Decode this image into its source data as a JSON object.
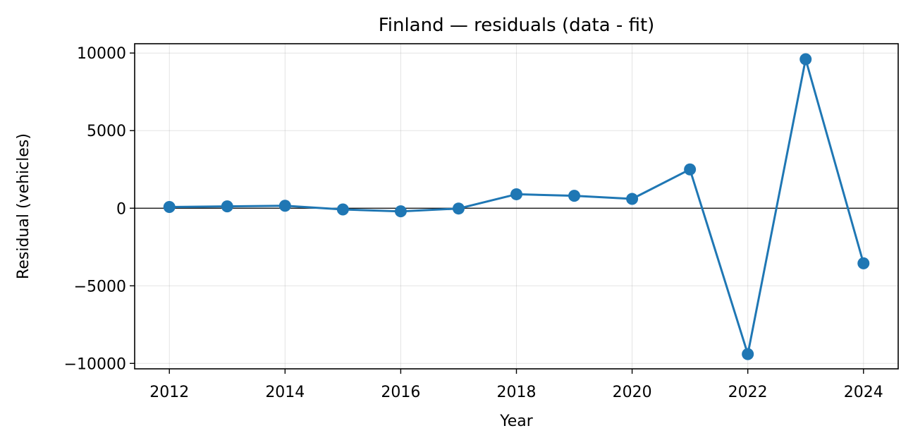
{
  "chart_data": {
    "type": "line",
    "title": "Finland — residuals (data - fit)",
    "xlabel": "Year",
    "ylabel": "Residual (vehicles)",
    "x": [
      2012,
      2013,
      2014,
      2015,
      2016,
      2017,
      2018,
      2019,
      2020,
      2021,
      2022,
      2023,
      2024
    ],
    "series": [
      {
        "name": "",
        "color": "#1f77b4",
        "marker": "circle",
        "values": [
          80,
          120,
          160,
          -80,
          -200,
          -20,
          900,
          800,
          600,
          2500,
          -9400,
          9600,
          -3550
        ]
      }
    ],
    "xlim": [
      2011.4,
      2024.6
    ],
    "ylim": [
      -10350,
      10600
    ],
    "x_ticks": [
      2012,
      2014,
      2016,
      2018,
      2020,
      2022,
      2024
    ],
    "x_tick_labels": [
      "2012",
      "2014",
      "2016",
      "2018",
      "2020",
      "2022",
      "2024"
    ],
    "y_ticks": [
      -10000,
      -5000,
      0,
      5000,
      10000
    ],
    "y_tick_labels": [
      "−10000",
      "−5000",
      "0",
      "5000",
      "10000"
    ],
    "zero_line": true,
    "grid": true,
    "legend": "none"
  }
}
